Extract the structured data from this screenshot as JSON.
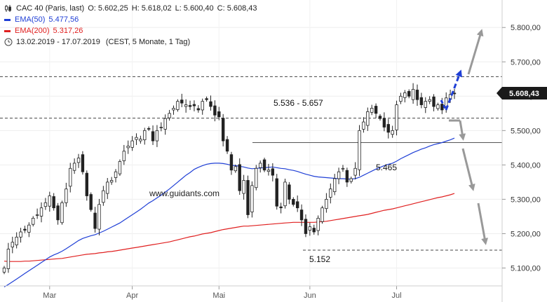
{
  "legend": {
    "title": "CAC 40 (Paris, last)",
    "ohlc": {
      "o": "O: 5.602,25",
      "h": "H: 5.618,02",
      "l": "L: 5.600,40",
      "c": "C: 5.608,43"
    },
    "ema50": {
      "label": "EMA(50)",
      "value": "5.477,56",
      "color": "#1f3fd6"
    },
    "ema200": {
      "label": "EMA(200)",
      "value": "5.317,26",
      "color": "#e02020"
    },
    "range": "13.02.2019 - 17.07.2019",
    "range_note": "(CEST, 5 Monate, 1 Tag)"
  },
  "watermark": "www.guidants.com",
  "chart_data": {
    "type": "candlestick",
    "ylim": [
      5050,
      5880
    ],
    "y_ticks": [
      5100,
      5200,
      5300,
      5400,
      5500,
      5600,
      5700,
      5800
    ],
    "y_tick_labels": [
      "5.100,00",
      "5.200,00",
      "5.300,00",
      "5.400,00",
      "5.500,00",
      "5.600,00",
      "5.700,00",
      "5.800,00"
    ],
    "x_labels": [
      "Mar",
      "Apr",
      "Mai",
      "Jun",
      "Jul"
    ],
    "x_label_index": [
      11,
      31,
      52,
      74,
      95
    ],
    "last_price": 5608.43,
    "last_price_label": "5.608,43",
    "closes": [
      5100,
      5155,
      5175,
      5190,
      5205,
      5210,
      5225,
      5245,
      5255,
      5275,
      5290,
      5310,
      5275,
      5240,
      5290,
      5330,
      5390,
      5405,
      5420,
      5380,
      5310,
      5270,
      5215,
      5285,
      5325,
      5350,
      5355,
      5380,
      5410,
      5440,
      5455,
      5470,
      5480,
      5475,
      5500,
      5505,
      5470,
      5500,
      5510,
      5535,
      5550,
      5565,
      5585,
      5580,
      5575,
      5570,
      5572,
      5560,
      5585,
      5590,
      5570,
      5545,
      5540,
      5470,
      5440,
      5385,
      5395,
      5325,
      5355,
      5255,
      5340,
      5390,
      5405,
      5385,
      5385,
      5370,
      5280,
      5275,
      5350,
      5300,
      5285,
      5275,
      5240,
      5200,
      5220,
      5205,
      5245,
      5275,
      5300,
      5330,
      5360,
      5380,
      5390,
      5350,
      5360,
      5390,
      5500,
      5525,
      5555,
      5565,
      5550,
      5535,
      5510,
      5495,
      5500,
      5575,
      5600,
      5610,
      5600,
      5620,
      5590,
      5575,
      5585,
      5590,
      5570,
      5575,
      5560,
      5595,
      5605,
      5608
    ],
    "ema50": [
      5045,
      5052,
      5060,
      5068,
      5076,
      5084,
      5092,
      5100,
      5108,
      5116,
      5124,
      5132,
      5138,
      5143,
      5149,
      5156,
      5164,
      5172,
      5180,
      5186,
      5190,
      5194,
      5197,
      5202,
      5207,
      5213,
      5219,
      5225,
      5231,
      5239,
      5247,
      5255,
      5263,
      5271,
      5280,
      5289,
      5296,
      5304,
      5312,
      5321,
      5330,
      5340,
      5350,
      5360,
      5370,
      5378,
      5387,
      5393,
      5398,
      5402,
      5404,
      5405,
      5405,
      5404,
      5402,
      5399,
      5398,
      5396,
      5394,
      5391,
      5389,
      5390,
      5391,
      5392,
      5393,
      5394,
      5392,
      5390,
      5389,
      5386,
      5384,
      5381,
      5377,
      5373,
      5370,
      5367,
      5365,
      5364,
      5363,
      5362,
      5361,
      5360,
      5360,
      5359,
      5359,
      5360,
      5364,
      5370,
      5376,
      5382,
      5388,
      5393,
      5398,
      5402,
      5405,
      5411,
      5418,
      5424,
      5430,
      5436,
      5441,
      5446,
      5450,
      5455,
      5459,
      5462,
      5465,
      5469,
      5473,
      5478
    ],
    "ema200": [
      5120,
      5119,
      5119,
      5119,
      5119,
      5120,
      5120,
      5121,
      5122,
      5123,
      5124,
      5125,
      5126,
      5127,
      5128,
      5130,
      5132,
      5134,
      5136,
      5138,
      5140,
      5141,
      5142,
      5144,
      5145,
      5147,
      5148,
      5150,
      5152,
      5154,
      5156,
      5158,
      5160,
      5162,
      5164,
      5166,
      5168,
      5170,
      5172,
      5174,
      5176,
      5179,
      5182,
      5185,
      5188,
      5191,
      5193,
      5196,
      5199,
      5201,
      5203,
      5206,
      5209,
      5212,
      5214,
      5216,
      5218,
      5220,
      5222,
      5222,
      5223,
      5224,
      5225,
      5226,
      5227,
      5228,
      5229,
      5230,
      5231,
      5232,
      5233,
      5233,
      5233,
      5233,
      5233,
      5233,
      5234,
      5235,
      5236,
      5238,
      5240,
      5242,
      5244,
      5246,
      5248,
      5250,
      5252,
      5254,
      5256,
      5259,
      5262,
      5265,
      5268,
      5270,
      5272,
      5275,
      5278,
      5281,
      5284,
      5287,
      5290,
      5293,
      5296,
      5299,
      5302,
      5305,
      5307,
      5310,
      5313,
      5317
    ],
    "levels": [
      {
        "value": 5657,
        "style": "dashed"
      },
      {
        "value": 5536,
        "style": "dashed"
      },
      {
        "value": 5465,
        "style": "solid"
      },
      {
        "value": 5152,
        "style": "dashed"
      }
    ],
    "annotations": [
      {
        "text": "5.536 - 5.657"
      },
      {
        "text": "5.465"
      },
      {
        "text": "5.152"
      }
    ]
  }
}
